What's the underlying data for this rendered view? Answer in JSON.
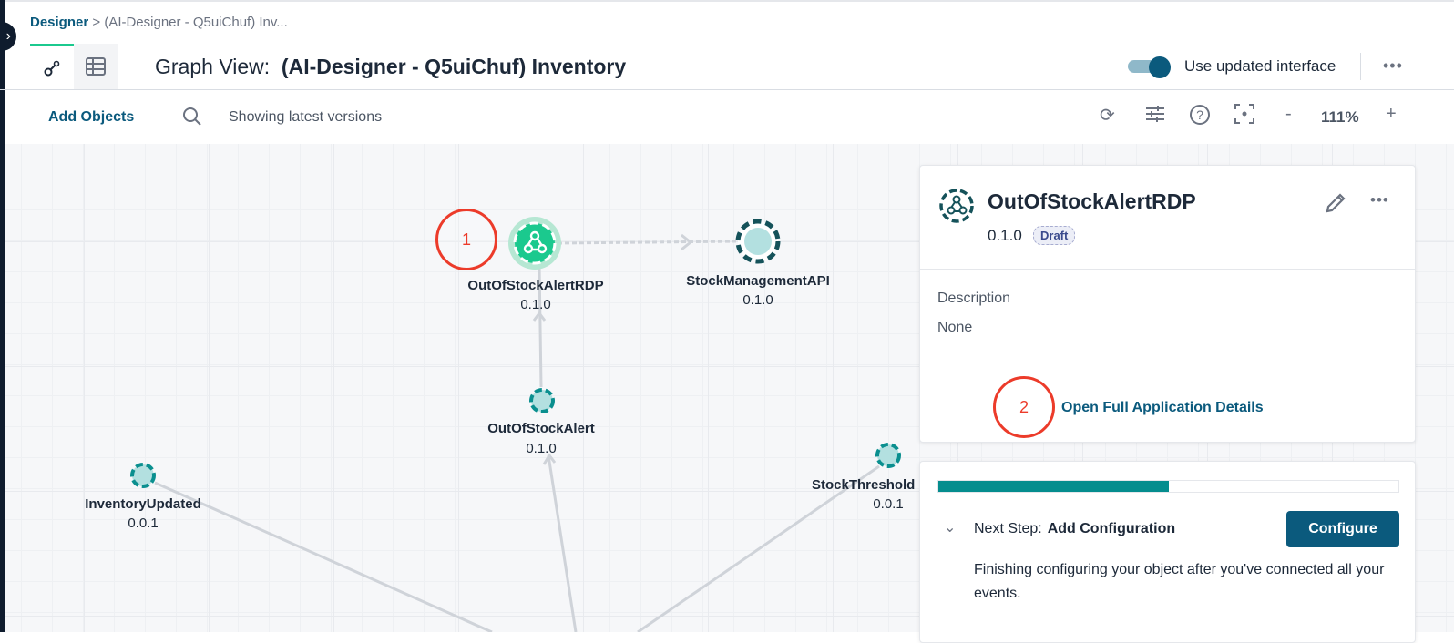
{
  "breadcrumb": {
    "root": "Designer",
    "separator": ">",
    "current": "(AI-Designer - Q5uiChuf) Inv..."
  },
  "header": {
    "title_prefix": "Graph View:",
    "title": "(AI-Designer - Q5uiChuf) Inventory",
    "toggle_label": "Use updated interface",
    "toggle_on": true,
    "more": "•••"
  },
  "view_tabs": [
    {
      "icon": "graph-icon",
      "active": true
    },
    {
      "icon": "table-icon",
      "active": false
    }
  ],
  "toolbar": {
    "add_objects": "Add Objects",
    "showing": "Showing latest versions",
    "zoom": "111%",
    "zoom_out": "-",
    "zoom_in": "+"
  },
  "graph": {
    "nodes": [
      {
        "name": "OutOfStockAlertRDP",
        "version": "0.1.0",
        "type": "application",
        "selected": true
      },
      {
        "name": "StockManagementAPI",
        "version": "0.1.0",
        "type": "api"
      },
      {
        "name": "OutOfStockAlert",
        "version": "0.1.0",
        "type": "event"
      },
      {
        "name": "InventoryUpdated",
        "version": "0.0.1",
        "type": "event"
      },
      {
        "name": "StockThreshold",
        "version": "0.0.1",
        "type": "event"
      }
    ]
  },
  "annotations": [
    "1",
    "2"
  ],
  "details": {
    "name": "OutOfStockAlertRDP",
    "version": "0.1.0",
    "badge": "Draft",
    "description_label": "Description",
    "description": "None",
    "open_link": "Open Full Application Details"
  },
  "next_step": {
    "progress_percent": 50,
    "label": "Next Step:",
    "step": "Add Configuration",
    "button": "Configure",
    "help": "Finishing configuring your object after you've connected all your events."
  },
  "colors": {
    "brand": "#0b5a7d",
    "accent": "#1bc98e",
    "teal": "#058d8e",
    "annotation": "#ec3b2a"
  }
}
